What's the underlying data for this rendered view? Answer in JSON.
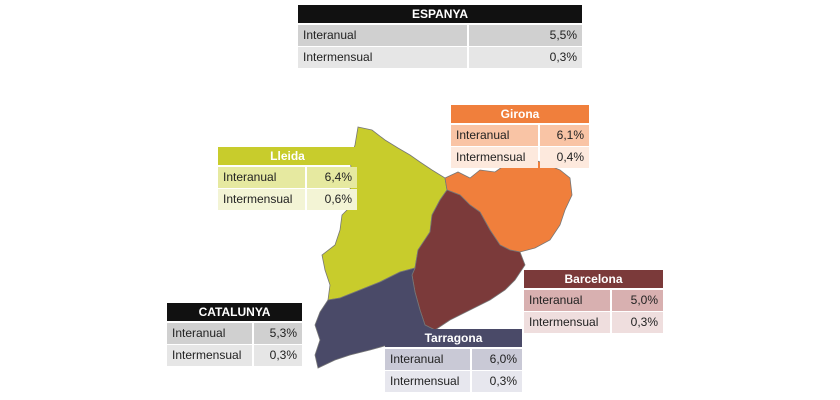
{
  "tables": [
    {
      "title": "ESPANYA",
      "rows": [
        [
          "Interanual",
          "5,5%"
        ],
        [
          "Intermensual",
          "0,3%"
        ]
      ]
    },
    {
      "title": "Girona",
      "rows": [
        [
          "Interanual",
          "6,1%"
        ],
        [
          "Intermensual",
          "0,4%"
        ]
      ]
    },
    {
      "title": "Lleida",
      "rows": [
        [
          "Interanual",
          "6,4%"
        ],
        [
          "Intermensual",
          "0,6%"
        ]
      ]
    },
    {
      "title": "Barcelona",
      "rows": [
        [
          "Interanual",
          "5,0%"
        ],
        [
          "Intermensual",
          "0,3%"
        ]
      ]
    },
    {
      "title": "CATALUNYA",
      "rows": [
        [
          "Interanual",
          "5,3%"
        ],
        [
          "Intermensual",
          "0,3%"
        ]
      ]
    },
    {
      "title": "Tarragona",
      "rows": [
        [
          "Interanual",
          "6,0%"
        ],
        [
          "Intermensual",
          "0,3%"
        ]
      ]
    }
  ]
}
